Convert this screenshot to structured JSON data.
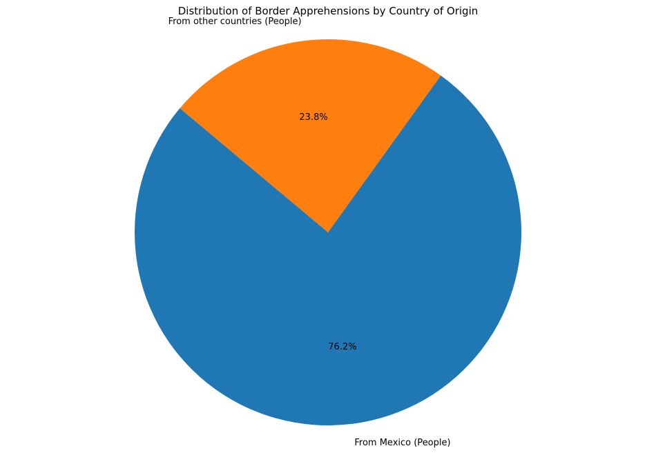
{
  "chart_data": {
    "type": "pie",
    "title": "Distribution of Border Apprehensions by Country of Origin",
    "slices": [
      {
        "label": "From Mexico (People)",
        "value": 76.2,
        "pct_label": "76.2%",
        "color": "#1f77b4"
      },
      {
        "label": "From other countries (People)",
        "value": 23.8,
        "pct_label": "23.8%",
        "color": "#ff7f0e"
      }
    ],
    "start_angle_deg": 140,
    "legend": "none"
  }
}
